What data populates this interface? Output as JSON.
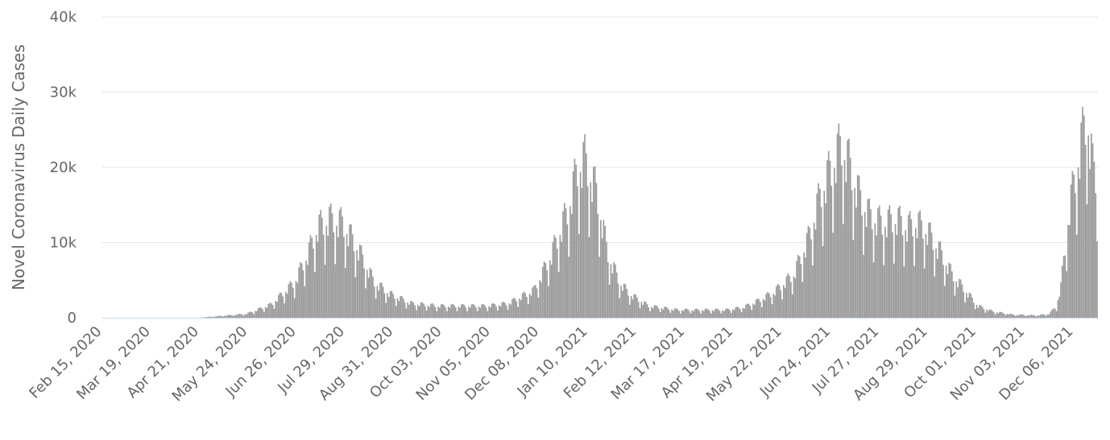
{
  "chart_data": {
    "type": "bar",
    "title": "",
    "xlabel": "",
    "ylabel": "Novel Coronavirus Daily Cases",
    "ylim": [
      0,
      40000
    ],
    "yticks": [
      {
        "value": 0,
        "label": "0"
      },
      {
        "value": 10000,
        "label": "10k"
      },
      {
        "value": 20000,
        "label": "20k"
      },
      {
        "value": 30000,
        "label": "30k"
      },
      {
        "value": 40000,
        "label": "40k"
      }
    ],
    "xticks": [
      "Feb 15, 2020",
      "Mar 19, 2020",
      "Apr 21, 2020",
      "May 24, 2020",
      "Jun 26, 2020",
      "Jul 29, 2020",
      "Aug 31, 2020",
      "Oct 03, 2020",
      "Nov 05, 2020",
      "Dec 08, 2020",
      "Jan 10, 2021",
      "Feb 12, 2021",
      "Mar 17, 2021",
      "Apr 19, 2021",
      "May 22, 2021",
      "Jun 24, 2021",
      "Jul 27, 2021",
      "Aug 29, 2021",
      "Oct 01, 2021",
      "Nov 03, 2021",
      "Dec 06, 2021"
    ],
    "x_start": "2020-02-15",
    "x_end": "2021-12-31",
    "grid": true,
    "legend": "none",
    "bar_color": "#9a9a9a",
    "weekly_profile": [
      1.0,
      0.88,
      1.18,
      1.22,
      1.12,
      0.92,
      0.58
    ],
    "series": [
      {
        "x": [
          "2020-02-15",
          "2020-03-19",
          "2020-04-21",
          "2020-05-01",
          "2020-05-24",
          "2020-06-10",
          "2020-06-26",
          "2020-07-05",
          "2020-07-12",
          "2020-07-20",
          "2020-07-29",
          "2020-08-08",
          "2020-08-20",
          "2020-08-31",
          "2020-09-15",
          "2020-10-03",
          "2020-10-20",
          "2020-11-05",
          "2020-11-20",
          "2020-12-08",
          "2020-12-20",
          "2021-01-01",
          "2021-01-07",
          "2021-01-12",
          "2021-01-20",
          "2021-01-28",
          "2021-02-05",
          "2021-02-12",
          "2021-02-25",
          "2021-03-17",
          "2021-04-05",
          "2021-04-19",
          "2021-05-01",
          "2021-05-12",
          "2021-05-22",
          "2021-06-05",
          "2021-06-15",
          "2021-06-24",
          "2021-07-02",
          "2021-07-08",
          "2021-07-14",
          "2021-07-20",
          "2021-07-27",
          "2021-08-05",
          "2021-08-15",
          "2021-08-22",
          "2021-08-29",
          "2021-09-05",
          "2021-09-15",
          "2021-09-22",
          "2021-10-01",
          "2021-10-10",
          "2021-10-20",
          "2021-11-03",
          "2021-11-20",
          "2021-11-28",
          "2021-12-03",
          "2021-12-06",
          "2021-12-09",
          "2021-12-12",
          "2021-12-16",
          "2021-12-20",
          "2021-12-24",
          "2021-12-28",
          "2021-12-31"
        ],
        "y": [
          0,
          0,
          0,
          150,
          500,
          1700,
          4500,
          8000,
          11500,
          12500,
          12000,
          9000,
          4500,
          3000,
          1800,
          1500,
          1500,
          1500,
          1800,
          3500,
          8000,
          14000,
          19000,
          20000,
          16000,
          8000,
          4500,
          3000,
          1500,
          1000,
          1000,
          1000,
          1300,
          2200,
          3200,
          5500,
          10000,
          16000,
          19500,
          22000,
          19000,
          15500,
          13000,
          12000,
          12500,
          11500,
          12000,
          11000,
          8000,
          5500,
          3500,
          1500,
          800,
          400,
          300,
          500,
          1500,
          4000,
          9000,
          14000,
          18000,
          22000,
          26000,
          19000,
          17500
        ]
      }
    ]
  }
}
